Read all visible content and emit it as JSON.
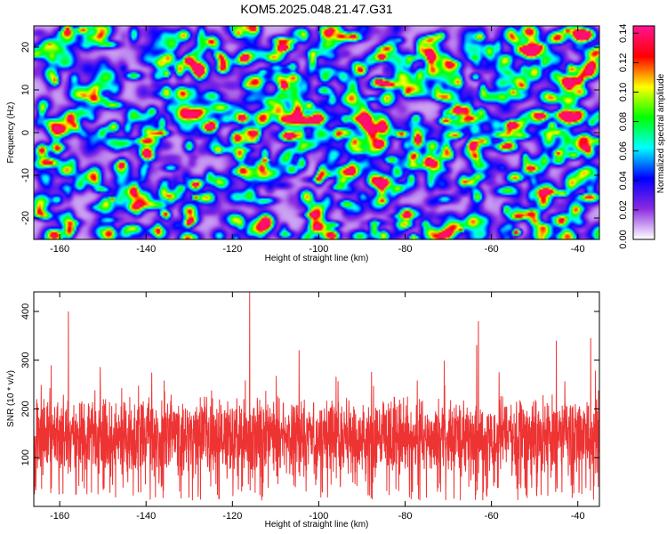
{
  "title": "KOM5.2025.048.21.47.G31",
  "chart_data": [
    {
      "type": "heatmap",
      "xlabel": "Height of straight line (km)",
      "ylabel": "Frequency (Hz)",
      "xlim": [
        -166,
        -35
      ],
      "ylim": [
        -25,
        25
      ],
      "x_ticks": [
        -160,
        -140,
        -120,
        -100,
        -80,
        -60,
        -40
      ],
      "y_ticks": [
        -20,
        -10,
        0,
        10,
        20
      ],
      "colorbar": {
        "label": "Normalized spectral amplitude",
        "range": [
          0,
          0.145
        ],
        "ticks": [
          0,
          0.02,
          0.04,
          0.06,
          0.08,
          0.1,
          0.12,
          0.14
        ],
        "tick_labels": [
          "0.00",
          "0.02",
          "0.04",
          "0.06",
          "0.08",
          "0.10",
          "0.12",
          "0.14"
        ],
        "colormap": [
          "#ffffff",
          "#8a2be2",
          "#0000ff",
          "#00ffff",
          "#00ff00",
          "#ffff00",
          "#ff0000",
          "#ff1493"
        ]
      },
      "value_mean": 0.035,
      "value_max": 0.14
    },
    {
      "type": "line",
      "xlabel": "Height of straight line (km)",
      "ylabel": "SNR (10 * v/v)",
      "xlim": [
        -166,
        -35
      ],
      "ylim": [
        0,
        440
      ],
      "x_ticks": [
        -160,
        -140,
        -120,
        -100,
        -80,
        -60,
        -40
      ],
      "y_ticks": [
        100,
        200,
        300,
        400
      ],
      "line_color": "#ee3333",
      "typical_range": [
        40,
        240
      ],
      "peaks": [
        {
          "x": -158,
          "y": 400
        },
        {
          "x": -116,
          "y": 440
        },
        {
          "x": -63,
          "y": 380
        },
        {
          "x": -37,
          "y": 345
        },
        {
          "x": -45,
          "y": 340
        }
      ]
    }
  ]
}
